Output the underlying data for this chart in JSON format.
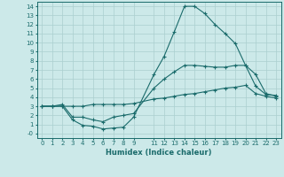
{
  "xlabel": "Humidex (Indice chaleur)",
  "bg_color": "#cce9e9",
  "grid_color": "#aacfcf",
  "line_color": "#1a6b6b",
  "xlim": [
    -0.5,
    23.5
  ],
  "ylim": [
    -0.5,
    14.5
  ],
  "xticks": [
    0,
    1,
    2,
    3,
    4,
    5,
    6,
    7,
    8,
    9,
    11,
    12,
    13,
    14,
    15,
    16,
    17,
    18,
    19,
    20,
    21,
    22,
    23
  ],
  "yticks": [
    0,
    1,
    2,
    3,
    4,
    5,
    6,
    7,
    8,
    9,
    10,
    11,
    12,
    13,
    14
  ],
  "ytick_labels": [
    "-0",
    "1",
    "2",
    "3",
    "4",
    "5",
    "6",
    "7",
    "8",
    "9",
    "10",
    "11",
    "12",
    "13",
    "14"
  ],
  "curve1_x": [
    0,
    1,
    2,
    3,
    4,
    5,
    6,
    7,
    8,
    9,
    11,
    12,
    13,
    14,
    15,
    16,
    17,
    18,
    19,
    20,
    21,
    22,
    23
  ],
  "curve1_y": [
    3.0,
    3.0,
    3.0,
    1.5,
    0.9,
    0.8,
    0.5,
    0.6,
    0.7,
    1.8,
    6.5,
    8.5,
    11.2,
    14.0,
    14.0,
    13.2,
    12.0,
    11.0,
    9.9,
    7.5,
    5.2,
    4.3,
    4.2
  ],
  "curve2_x": [
    0,
    1,
    2,
    3,
    4,
    5,
    6,
    7,
    8,
    9,
    11,
    12,
    13,
    14,
    15,
    16,
    17,
    18,
    19,
    20,
    21,
    22,
    23
  ],
  "curve2_y": [
    3.0,
    3.0,
    3.2,
    1.8,
    1.8,
    1.5,
    1.3,
    1.8,
    2.0,
    2.2,
    5.0,
    6.0,
    6.8,
    7.5,
    7.5,
    7.4,
    7.3,
    7.3,
    7.5,
    7.5,
    6.5,
    4.4,
    4.1
  ],
  "curve3_x": [
    0,
    1,
    2,
    3,
    4,
    5,
    6,
    7,
    8,
    9,
    11,
    12,
    13,
    14,
    15,
    16,
    17,
    18,
    19,
    20,
    21,
    22,
    23
  ],
  "curve3_y": [
    3.0,
    3.0,
    3.0,
    3.0,
    3.0,
    3.2,
    3.2,
    3.2,
    3.2,
    3.3,
    3.8,
    3.9,
    4.1,
    4.3,
    4.4,
    4.6,
    4.8,
    5.0,
    5.1,
    5.3,
    4.4,
    4.1,
    3.9
  ]
}
